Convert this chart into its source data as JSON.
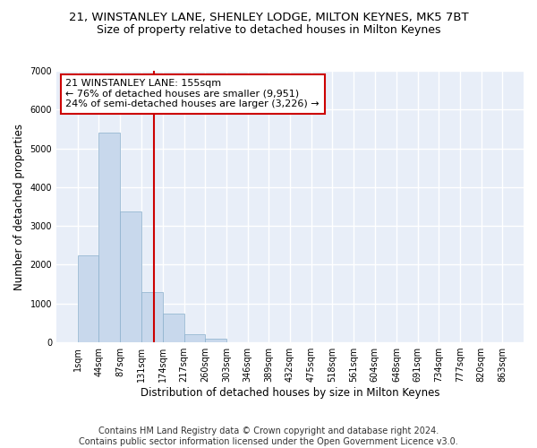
{
  "title": "21, WINSTANLEY LANE, SHENLEY LODGE, MILTON KEYNES, MK5 7BT",
  "subtitle": "Size of property relative to detached houses in Milton Keynes",
  "xlabel": "Distribution of detached houses by size in Milton Keynes",
  "ylabel": "Number of detached properties",
  "footer_line1": "Contains HM Land Registry data © Crown copyright and database right 2024.",
  "footer_line2": "Contains public sector information licensed under the Open Government Licence v3.0.",
  "annotation_line1": "21 WINSTANLEY LANE: 155sqm",
  "annotation_line2": "← 76% of detached houses are smaller (9,951)",
  "annotation_line3": "24% of semi-detached houses are larger (3,226) →",
  "bar_color": "#c8d8ec",
  "bar_edge_color": "#8ab0cc",
  "ref_line_color": "#cc0000",
  "ref_line_x": 155,
  "bin_edges": [
    1,
    44,
    87,
    131,
    174,
    217,
    260,
    303,
    346,
    389,
    432,
    475,
    518,
    561,
    604,
    648,
    691,
    734,
    777,
    820,
    863
  ],
  "bar_heights": [
    2250,
    5400,
    3380,
    1300,
    750,
    200,
    90,
    0,
    0,
    0,
    0,
    0,
    0,
    0,
    0,
    0,
    0,
    0,
    0,
    0
  ],
  "ylim": [
    0,
    7000
  ],
  "yticks": [
    0,
    1000,
    2000,
    3000,
    4000,
    5000,
    6000,
    7000
  ],
  "background_color": "#e8eef8",
  "grid_color": "#ffffff",
  "title_fontsize": 9.5,
  "subtitle_fontsize": 9,
  "axis_label_fontsize": 8.5,
  "tick_fontsize": 7,
  "footer_fontsize": 7,
  "annotation_fontsize": 8
}
